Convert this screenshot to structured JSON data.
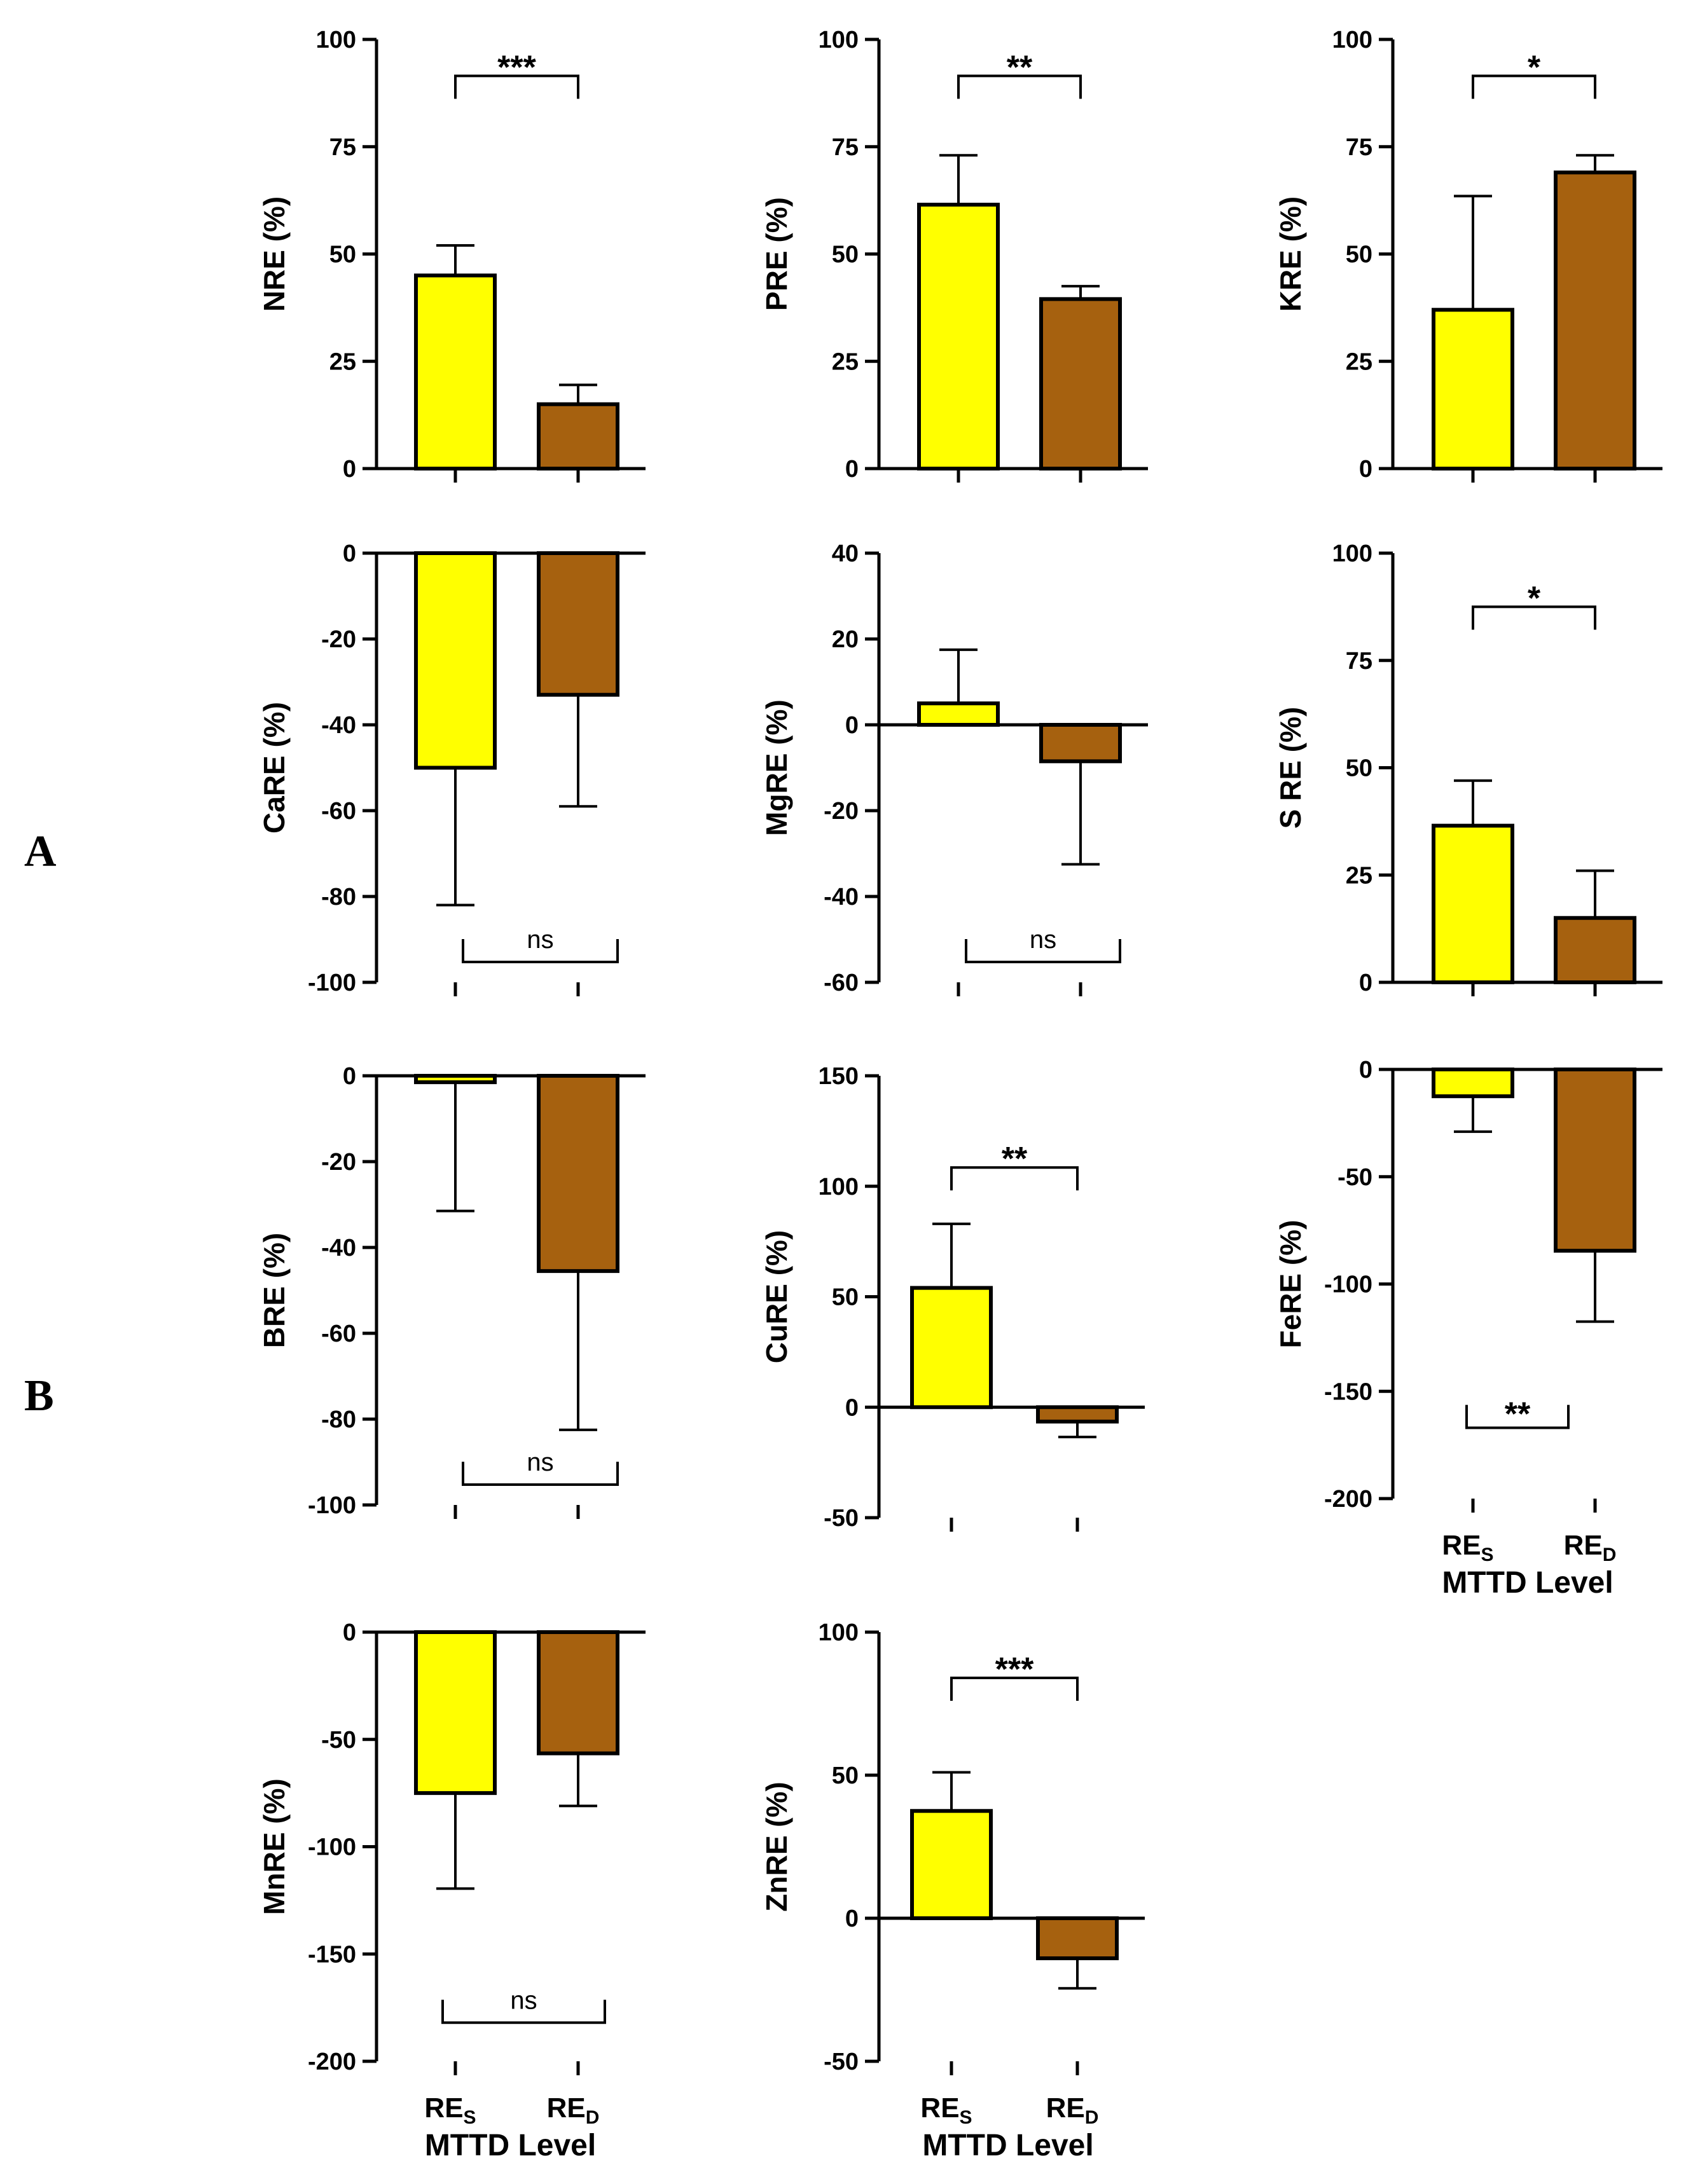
{
  "colors": {
    "res": "#ffff00",
    "red": "#a6610f",
    "stroke": "#000000"
  },
  "panel_labels": [
    "A",
    "B"
  ],
  "chart_data": [
    {
      "type": "bar",
      "ylabel": "NRE  (%)",
      "ylim": [
        0,
        100
      ],
      "yticks": [
        0,
        25,
        50,
        75,
        100
      ],
      "categories": [
        "RES",
        "RED"
      ],
      "values": [
        45,
        15
      ],
      "errors": [
        7,
        4.5
      ],
      "significance": "***",
      "show_xlabels": false
    },
    {
      "type": "bar",
      "ylabel": "PRE  (%)",
      "ylim": [
        0,
        100
      ],
      "yticks": [
        0,
        25,
        50,
        75,
        100
      ],
      "categories": [
        "RES",
        "RED"
      ],
      "values": [
        61.5,
        39.5
      ],
      "errors": [
        11.5,
        3
      ],
      "significance": "**",
      "show_xlabels": false
    },
    {
      "type": "bar",
      "ylabel": "KRE  (%)",
      "ylim": [
        0,
        100
      ],
      "yticks": [
        0,
        25,
        50,
        75,
        100
      ],
      "categories": [
        "RES",
        "RED"
      ],
      "values": [
        37,
        69
      ],
      "errors": [
        26.5,
        4
      ],
      "significance": "*",
      "show_xlabels": false
    },
    {
      "type": "bar",
      "ylabel": "CaRE  (%)",
      "ylim": [
        -100,
        0
      ],
      "yticks": [
        -100,
        -80,
        -60,
        -40,
        -20,
        0
      ],
      "categories": [
        "RES",
        "RED"
      ],
      "values": [
        -50,
        -33
      ],
      "errors": [
        32,
        26
      ],
      "significance": "ns",
      "show_xlabels": false
    },
    {
      "type": "bar",
      "ylabel": "MgRE  (%)",
      "ylim": [
        -60,
        40
      ],
      "yticks": [
        -60,
        -40,
        -20,
        0,
        20,
        40
      ],
      "categories": [
        "RES",
        "RED"
      ],
      "values": [
        5,
        -8.5
      ],
      "errors": [
        12.5,
        24
      ],
      "significance": "ns",
      "show_xlabels": false
    },
    {
      "type": "bar",
      "ylabel": "S RE  (%)",
      "ylim": [
        0,
        100
      ],
      "yticks": [
        0,
        25,
        50,
        75,
        100
      ],
      "categories": [
        "RES",
        "RED"
      ],
      "values": [
        36.5,
        15
      ],
      "errors": [
        10.5,
        11
      ],
      "significance": "*",
      "show_xlabels": false
    },
    {
      "type": "bar",
      "ylabel": "BRE  (%)",
      "ylim": [
        -100,
        0
      ],
      "yticks": [
        -100,
        -80,
        -60,
        -40,
        -20,
        0
      ],
      "categories": [
        "RES",
        "RED"
      ],
      "values": [
        -1.5,
        -45.5
      ],
      "errors": [
        30,
        37
      ],
      "significance": "ns",
      "show_xlabels": false
    },
    {
      "type": "bar",
      "ylabel": "CuRE  (%)",
      "ylim": [
        -50,
        150
      ],
      "yticks": [
        -50,
        0,
        50,
        100,
        150
      ],
      "categories": [
        "RES",
        "RED"
      ],
      "values": [
        54,
        -6.5
      ],
      "errors": [
        29,
        7
      ],
      "significance": "**",
      "show_xlabels": false
    },
    {
      "type": "bar",
      "ylabel": "FeRE  (%)",
      "ylim": [
        -200,
        0
      ],
      "yticks": [
        -200,
        -150,
        -100,
        -50,
        0
      ],
      "categories": [
        "RES",
        "RED"
      ],
      "values": [
        -12.5,
        -84.5
      ],
      "errors": [
        16.5,
        33
      ],
      "significance": "**",
      "show_xlabels": true,
      "xlabel": "MTTD Level"
    },
    {
      "type": "bar",
      "ylabel": "MnRE  (%)",
      "ylim": [
        -200,
        0
      ],
      "yticks": [
        -200,
        -150,
        -100,
        -50,
        0
      ],
      "categories": [
        "RES",
        "RED"
      ],
      "values": [
        -75,
        -56.5
      ],
      "errors": [
        44.5,
        24.5
      ],
      "significance": "ns",
      "show_xlabels": true,
      "xlabel": "MTTD Level"
    },
    {
      "type": "bar",
      "ylabel": "ZnRE  (%)",
      "ylim": [
        -50,
        100
      ],
      "yticks": [
        -50,
        0,
        50,
        100
      ],
      "categories": [
        "RES",
        "RED"
      ],
      "values": [
        37.5,
        -14
      ],
      "errors": [
        13.5,
        10.5
      ],
      "significance": "***",
      "show_xlabels": true,
      "xlabel": "MTTD Level"
    }
  ]
}
